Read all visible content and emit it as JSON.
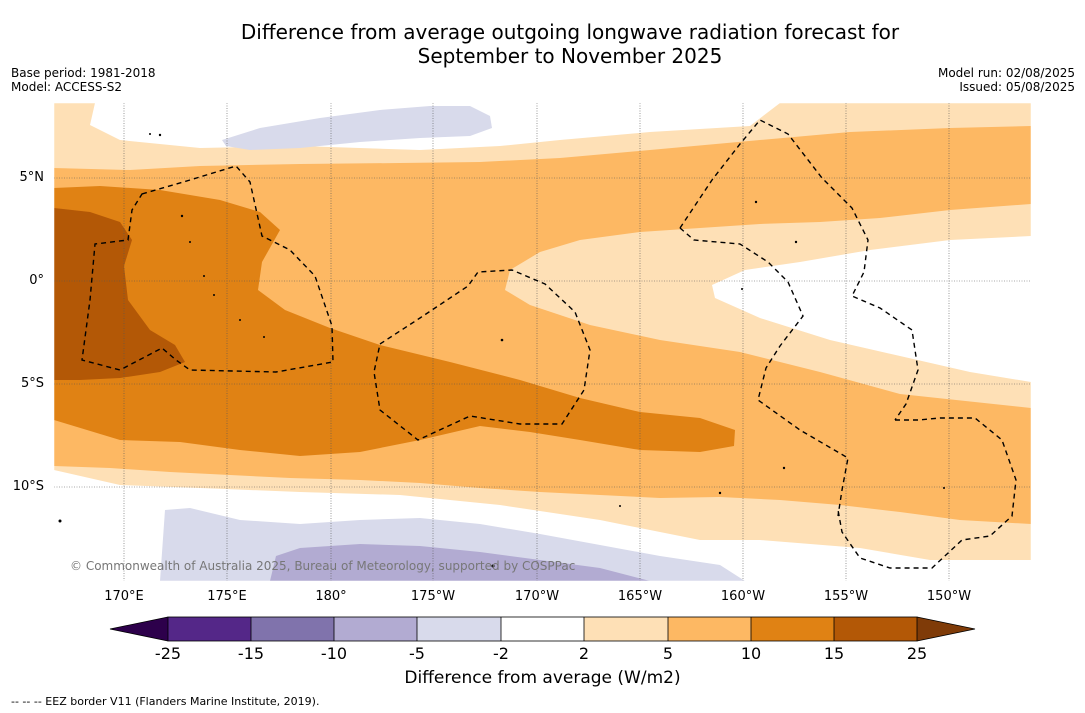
{
  "title_line1": "Difference from average outgoing longwave radiation forecast for",
  "title_line2": "September to November 2025",
  "base_period": "Base period: 1981-2018",
  "model": "Model: ACCESS-S2",
  "model_run": "Model run: 02/08/2025",
  "issued": "Issued: 05/08/2025",
  "lat_labels": [
    "5°N",
    "0°",
    "5°S",
    "10°S"
  ],
  "lon_labels": [
    "170°E",
    "175°E",
    "180°",
    "175°W",
    "170°W",
    "165°W",
    "160°W",
    "155°W",
    "150°W"
  ],
  "colorbar": {
    "ticks": [
      "-25",
      "-15",
      "-10",
      "-5",
      "-2",
      "2",
      "5",
      "10",
      "15",
      "25"
    ],
    "colors": [
      "#2d004b",
      "#542788",
      "#8073ac",
      "#b2abd2",
      "#d8daeb",
      "#ffffff",
      "#fee0b6",
      "#fdb863",
      "#e08214",
      "#b35806",
      "#7f3b08"
    ],
    "label": "Difference from average (W/m2)"
  },
  "copyright": "© Commonwealth of Australia 2025, Bureau of Meteorology, supported by COSPPac",
  "footnote": "--  --  -- EEZ border V11 (Flanders Marine Institute, 2019)."
}
